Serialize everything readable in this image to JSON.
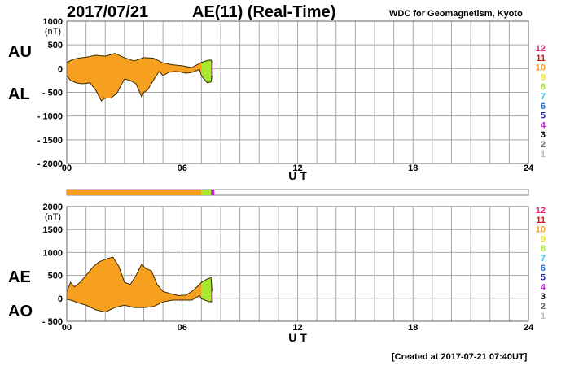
{
  "header": {
    "date": "2017/07/21",
    "title": "AE(11) (Real-Time)",
    "source": "WDC for Geomagnetism, Kyoto"
  },
  "footer": {
    "created": "[Created at 2017-07-21 07:40UT]"
  },
  "hour_colors": {
    "12": "#e8207a",
    "11": "#e01010",
    "10": "#f7a020",
    "9": "#f0e020",
    "8": "#a8e830",
    "7": "#30c8e8",
    "6": "#1a6de0",
    "5": "#2020c0",
    "4": "#c020d8",
    "3": "#000000",
    "2": "#666666",
    "1": "#bbbbbb"
  },
  "chart_data": [
    {
      "type": "area",
      "id": "au-al",
      "labels": {
        "upper": "AU",
        "lower": "AL"
      },
      "xlabel": "U T",
      "x_ticks": [
        "00",
        "06",
        "12",
        "18",
        "24"
      ],
      "xlim": [
        0,
        24
      ],
      "ylim": [
        -2000,
        1000
      ],
      "y_ticks": [
        {
          "v": 1000,
          "t": "1000"
        },
        {
          "v": 500,
          "t": "500"
        },
        {
          "v": 0,
          "t": "0"
        },
        {
          "v": -500,
          "t": "- 500"
        },
        {
          "v": -1000,
          "t": "- 1000"
        },
        {
          "v": -1500,
          "t": "- 1500"
        },
        {
          "v": -2000,
          "t": "- 2000"
        }
      ],
      "unit": "(nT)",
      "legend": [
        "12",
        "11",
        "10",
        "9",
        "8",
        "7",
        "6",
        "5",
        "4",
        "3",
        "2",
        "1"
      ],
      "grid": true,
      "series": [
        {
          "name": "AU",
          "x": [
            0.0,
            0.3,
            0.6,
            1.0,
            1.5,
            2.0,
            2.5,
            3.0,
            3.5,
            4.0,
            4.5,
            5.0,
            5.5,
            6.0,
            6.5,
            6.9,
            7.0,
            7.3,
            7.5,
            7.55
          ],
          "values": [
            130,
            190,
            220,
            240,
            280,
            260,
            320,
            230,
            160,
            230,
            220,
            120,
            80,
            60,
            20,
            110,
            130,
            170,
            180,
            130
          ]
        },
        {
          "name": "AL",
          "x": [
            0.0,
            0.2,
            0.5,
            0.8,
            1.2,
            1.5,
            1.8,
            2.0,
            2.3,
            2.6,
            3.0,
            3.3,
            3.6,
            3.9,
            4.0,
            4.2,
            4.5,
            4.8,
            5.0,
            5.3,
            5.6,
            5.9,
            6.2,
            6.5,
            6.9,
            7.0,
            7.3,
            7.5,
            7.55
          ],
          "values": [
            -150,
            -250,
            -300,
            -320,
            -300,
            -450,
            -680,
            -620,
            -620,
            -520,
            -220,
            -250,
            -320,
            -600,
            -500,
            -450,
            -250,
            -60,
            -150,
            -80,
            -60,
            -70,
            -100,
            -80,
            -20,
            -150,
            -300,
            -280,
            -150
          ]
        }
      ],
      "hour_color_ranges": [
        {
          "from": 0.0,
          "to": 7.0,
          "level": "10"
        },
        {
          "from": 7.0,
          "to": 7.5,
          "level": "8"
        },
        {
          "from": 7.5,
          "to": 7.67,
          "level": "4"
        }
      ]
    },
    {
      "type": "area",
      "id": "ae-ao",
      "labels": {
        "upper": "AE",
        "lower": "AO"
      },
      "xlabel": "U T",
      "x_ticks": [
        "00",
        "06",
        "12",
        "18",
        "24"
      ],
      "xlim": [
        0,
        24
      ],
      "ylim": [
        -500,
        2000
      ],
      "y_ticks": [
        {
          "v": 2000,
          "t": "2000"
        },
        {
          "v": 1500,
          "t": "1500"
        },
        {
          "v": 1000,
          "t": "1000"
        },
        {
          "v": 500,
          "t": "500"
        },
        {
          "v": 0,
          "t": "0"
        },
        {
          "v": -500,
          "t": "- 500"
        }
      ],
      "unit": "(nT)",
      "legend": [
        "12",
        "11",
        "10",
        "9",
        "8",
        "7",
        "6",
        "5",
        "4",
        "3",
        "2",
        "1"
      ],
      "grid": true,
      "series": [
        {
          "name": "AE",
          "x": [
            0.0,
            0.2,
            0.4,
            0.7,
            1.0,
            1.4,
            1.7,
            2.0,
            2.4,
            2.7,
            3.0,
            3.3,
            3.6,
            3.9,
            4.1,
            4.4,
            4.7,
            5.0,
            5.4,
            5.8,
            6.2,
            6.5,
            6.9,
            7.0,
            7.3,
            7.5,
            7.55
          ],
          "values": [
            150,
            350,
            250,
            350,
            500,
            700,
            800,
            850,
            900,
            700,
            350,
            300,
            500,
            750,
            650,
            600,
            300,
            150,
            100,
            60,
            70,
            150,
            300,
            350,
            420,
            450,
            150
          ]
        },
        {
          "name": "AO",
          "x": [
            0.0,
            0.3,
            0.6,
            1.0,
            1.5,
            2.0,
            2.5,
            3.0,
            3.5,
            4.0,
            4.5,
            5.0,
            5.5,
            6.0,
            6.5,
            6.9,
            7.0,
            7.3,
            7.5,
            7.55
          ],
          "values": [
            -20,
            -50,
            -100,
            -150,
            -250,
            -300,
            -200,
            -150,
            -200,
            -200,
            -180,
            -80,
            -40,
            -40,
            -40,
            60,
            -10,
            -60,
            -80,
            -60
          ]
        }
      ],
      "hour_color_ranges": [
        {
          "from": 0.0,
          "to": 7.0,
          "level": "10"
        },
        {
          "from": 7.0,
          "to": 7.5,
          "level": "8"
        },
        {
          "from": 7.5,
          "to": 7.67,
          "level": "4"
        }
      ]
    }
  ]
}
